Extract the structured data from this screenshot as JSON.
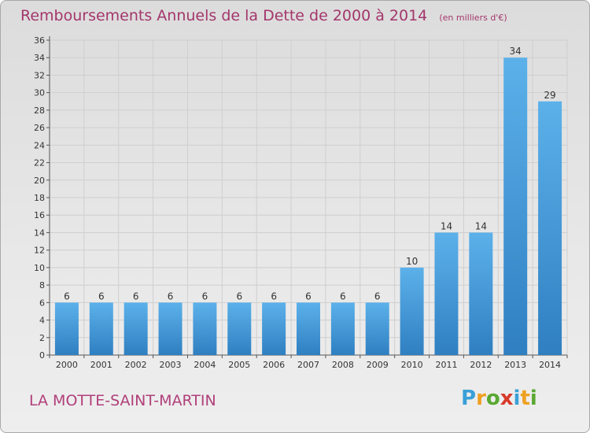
{
  "colors": {
    "title": "#a3366b",
    "commune": "#b0407a",
    "bar_top": "#5cb1ea",
    "bar_bottom": "#2f7fc1",
    "axis": "#555555",
    "grid": "#cfcfcf"
  },
  "header": {
    "title": "Remboursements Annuels de la Dette de 2000 à 2014",
    "subtitle": "(en milliers d'€)"
  },
  "footer": {
    "commune": "LA MOTTE-SAINT-MARTIN",
    "brand_letters": [
      {
        "ch": "P",
        "color": "#3aa0d8"
      },
      {
        "ch": "r",
        "color": "#f0a020"
      },
      {
        "ch": "o",
        "color": "#5aa832"
      },
      {
        "ch": "x",
        "color": "#d83a2a"
      },
      {
        "ch": "i",
        "color": "#3aa0d8"
      },
      {
        "ch": "t",
        "color": "#f0a020"
      },
      {
        "ch": "i",
        "color": "#5aa832"
      }
    ]
  },
  "chart_data": {
    "type": "bar",
    "title": "Remboursements Annuels de la Dette de 2000 à 2014",
    "xlabel": "",
    "ylabel": "(en milliers d'€)",
    "categories": [
      "2000",
      "2001",
      "2002",
      "2003",
      "2004",
      "2005",
      "2006",
      "2007",
      "2008",
      "2009",
      "2010",
      "2011",
      "2012",
      "2013",
      "2014"
    ],
    "values": [
      6,
      6,
      6,
      6,
      6,
      6,
      6,
      6,
      6,
      6,
      10,
      14,
      14,
      34,
      29
    ],
    "data_labels": [
      "6",
      "6",
      "6",
      "6",
      "6",
      "6",
      "6",
      "6",
      "6",
      "6",
      "10",
      "14",
      "14",
      "34",
      "29"
    ],
    "ylim": [
      0,
      36
    ],
    "yticks": [
      0,
      2,
      4,
      6,
      8,
      10,
      12,
      14,
      16,
      18,
      20,
      22,
      24,
      26,
      28,
      30,
      32,
      34,
      36
    ],
    "grid": true
  }
}
